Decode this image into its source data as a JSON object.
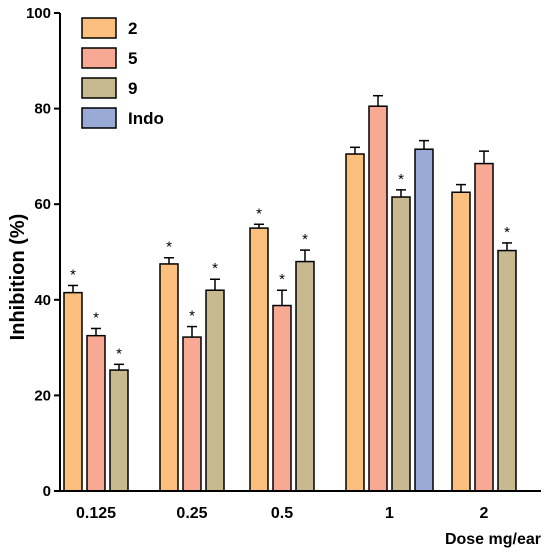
{
  "chart_data": {
    "type": "bar",
    "xlabel": "Dose mg/ear",
    "ylabel": "Inhibition (%)",
    "ylim": [
      0,
      100
    ],
    "yticks": [
      0,
      20,
      40,
      60,
      80,
      100
    ],
    "categories": [
      "0.125",
      "0.25",
      "0.5",
      "1",
      "2"
    ],
    "legend_position": "top-left",
    "series": [
      {
        "name": "2",
        "color": "#fbbf7e",
        "values": [
          41.5,
          47.5,
          55,
          70.5,
          62.5
        ],
        "errors": [
          1.5,
          1.3,
          0.8,
          1.4,
          1.6
        ],
        "significance": [
          "*",
          "*",
          "*",
          "",
          ""
        ]
      },
      {
        "name": "5",
        "color": "#f8a993",
        "values": [
          32.5,
          32.2,
          38.8,
          80.5,
          68.5
        ],
        "errors": [
          1.5,
          2.2,
          3.2,
          2.2,
          2.6
        ],
        "significance": [
          "*",
          "*",
          "*",
          "",
          ""
        ]
      },
      {
        "name": "9",
        "color": "#c7b990",
        "values": [
          25.3,
          42,
          48,
          61.5,
          50.3
        ],
        "errors": [
          1.2,
          2.3,
          2.4,
          1.5,
          1.6
        ],
        "significance": [
          "*",
          "*",
          "*",
          "*",
          "*"
        ]
      },
      {
        "name": "Indo",
        "color": "#9aaad7",
        "values": [
          null,
          null,
          null,
          71.5,
          null
        ],
        "errors": [
          null,
          null,
          null,
          1.8,
          null
        ],
        "significance": [
          "",
          "",
          "",
          "",
          ""
        ]
      }
    ]
  }
}
